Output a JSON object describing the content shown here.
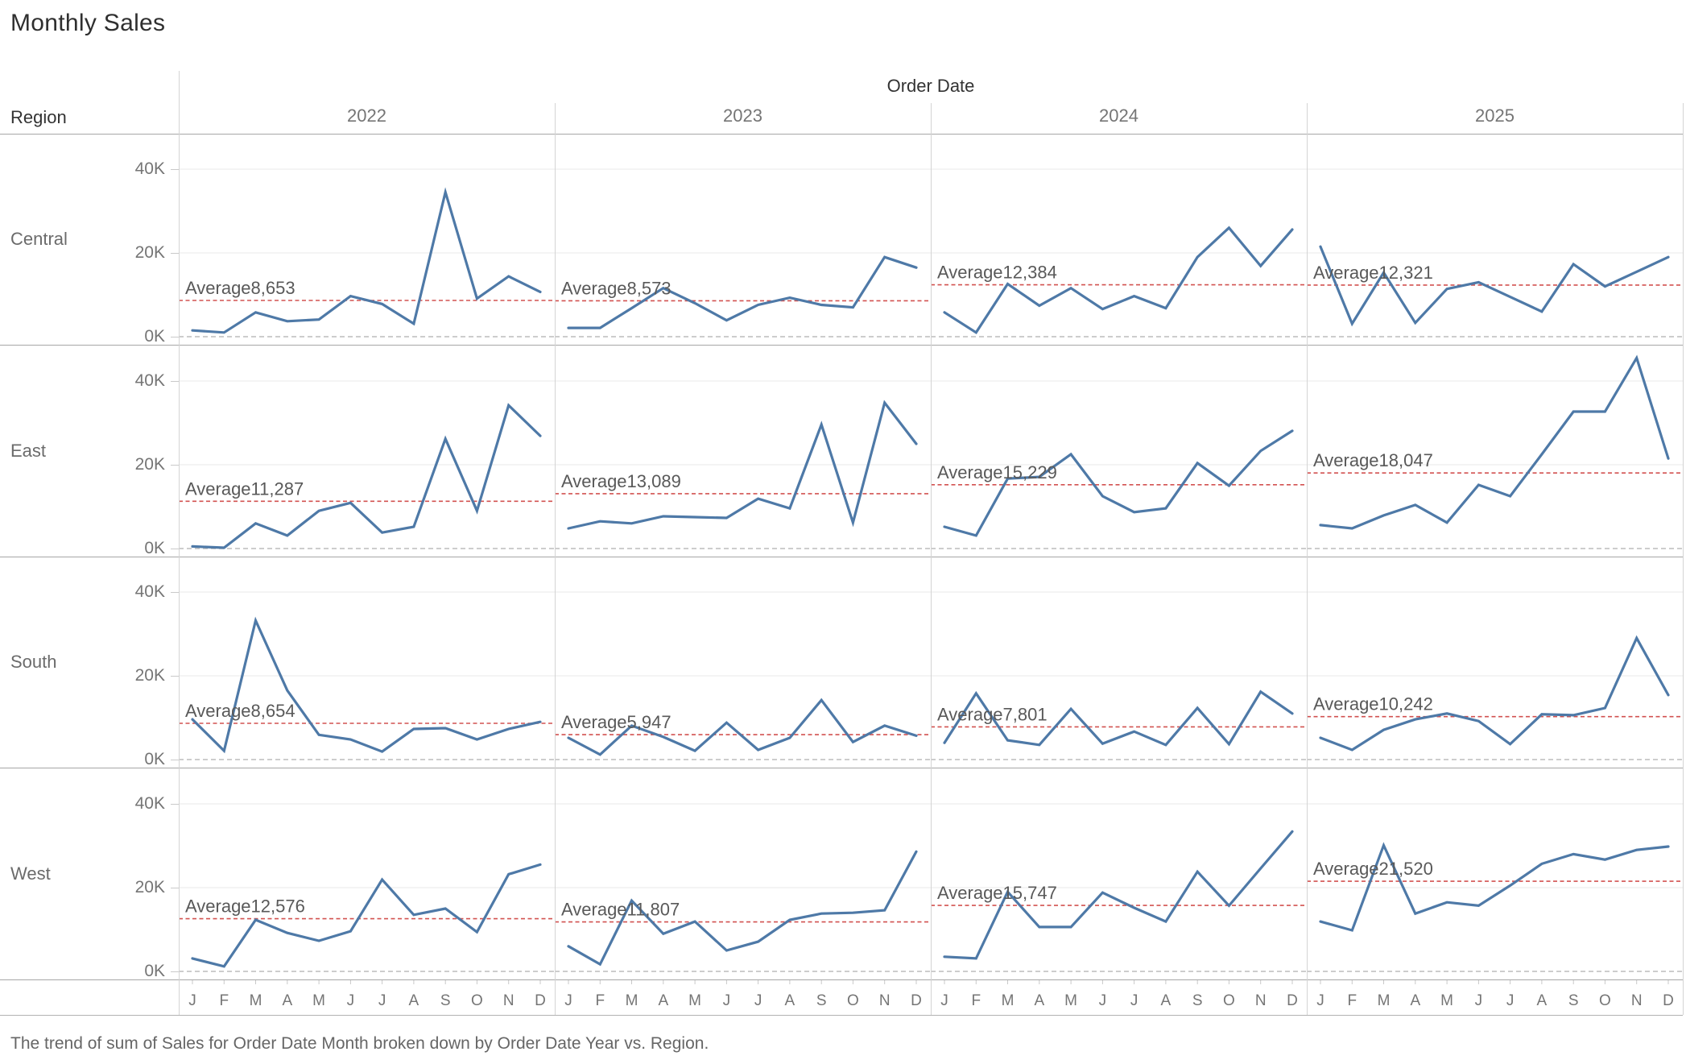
{
  "title": "Monthly Sales",
  "caption": "The trend of sum of Sales for Order Date Month broken down by Order Date Year vs. Region.",
  "header": {
    "column_field": "Order Date",
    "row_field": "Region"
  },
  "years": [
    "2022",
    "2023",
    "2024",
    "2025"
  ],
  "regions": [
    "Central",
    "East",
    "South",
    "West"
  ],
  "months": [
    "J",
    "F",
    "M",
    "A",
    "M",
    "J",
    "J",
    "A",
    "S",
    "O",
    "N",
    "D"
  ],
  "y_axis": {
    "tick_labels": [
      "40K",
      "20K",
      "0K"
    ],
    "tick_values": [
      40000,
      20000,
      0
    ],
    "max": 43000
  },
  "colors": {
    "line": "#4e79a7",
    "average_line": "#d25250",
    "gridline": "#ededed",
    "zero_line": "#c6c6c6",
    "row_border": "#a6a6a6",
    "col_border": "#d4d4d4",
    "text_gray": "#757575"
  },
  "chart_data": {
    "type": "line",
    "title": "Monthly Sales",
    "x_categories": [
      "J",
      "F",
      "M",
      "A",
      "M",
      "J",
      "J",
      "A",
      "S",
      "O",
      "N",
      "D"
    ],
    "ylim": [
      0,
      43000
    ],
    "grid": true,
    "facet_columns_field": "Order Date",
    "facet_rows_field": "Region",
    "cells": [
      {
        "region": "Central",
        "year": "2022",
        "average": 8653,
        "average_label": "Average8,653",
        "values": [
          1500,
          1000,
          5800,
          3700,
          4100,
          9700,
          7800,
          3100,
          34500,
          9100,
          14400,
          10700
        ]
      },
      {
        "region": "Central",
        "year": "2023",
        "average": 8573,
        "average_label": "Average8,573",
        "values": [
          2100,
          2100,
          6800,
          11600,
          8000,
          3900,
          7600,
          9300,
          7600,
          7000,
          19000,
          16500
        ]
      },
      {
        "region": "Central",
        "year": "2024",
        "average": 12384,
        "average_label": "Average12,384",
        "values": [
          5800,
          1000,
          12600,
          7400,
          11600,
          6600,
          9700,
          6800,
          19000,
          26000,
          16900,
          25600
        ]
      },
      {
        "region": "Central",
        "year": "2025",
        "average": 12321,
        "average_label": "Average12,321",
        "values": [
          21500,
          3100,
          15300,
          3300,
          11400,
          13000,
          9500,
          6000,
          17300,
          12000,
          15500,
          19000
        ]
      },
      {
        "region": "East",
        "year": "2022",
        "average": 11287,
        "average_label": "Average11,287",
        "values": [
          500,
          200,
          6000,
          3100,
          9000,
          10900,
          3800,
          5200,
          26200,
          9000,
          34200,
          26900
        ]
      },
      {
        "region": "East",
        "year": "2023",
        "average": 13089,
        "average_label": "Average13,089",
        "values": [
          4800,
          6500,
          6000,
          7700,
          7500,
          7300,
          11900,
          9600,
          29600,
          6200,
          34800,
          25000
        ]
      },
      {
        "region": "East",
        "year": "2024",
        "average": 15229,
        "average_label": "Average15,229",
        "values": [
          5200,
          3100,
          16700,
          17100,
          22500,
          12500,
          8700,
          9600,
          20400,
          15000,
          23300,
          28100
        ]
      },
      {
        "region": "East",
        "year": "2025",
        "average": 18047,
        "average_label": "Average18,047",
        "values": [
          5600,
          4800,
          7900,
          10400,
          6200,
          15200,
          12500,
          22500,
          32700,
          32700,
          45500,
          21500
        ]
      },
      {
        "region": "South",
        "year": "2022",
        "average": 8654,
        "average_label": "Average8,654",
        "values": [
          9600,
          2100,
          33200,
          16500,
          5900,
          4800,
          1900,
          7300,
          7500,
          4800,
          7300,
          9000
        ]
      },
      {
        "region": "South",
        "year": "2023",
        "average": 5947,
        "average_label": "Average5,947",
        "values": [
          5200,
          1200,
          8100,
          5400,
          2100,
          8800,
          2300,
          5200,
          14200,
          4200,
          8100,
          5700
        ]
      },
      {
        "region": "South",
        "year": "2024",
        "average": 7801,
        "average_label": "Average7,801",
        "values": [
          4000,
          15800,
          4600,
          3500,
          12100,
          3800,
          6700,
          3500,
          12300,
          3700,
          16200,
          11000
        ]
      },
      {
        "region": "South",
        "year": "2025",
        "average": 10242,
        "average_label": "Average10,242",
        "values": [
          5200,
          2300,
          7100,
          9600,
          11000,
          9200,
          3700,
          10800,
          10600,
          12300,
          29000,
          15400
        ]
      },
      {
        "region": "West",
        "year": "2022",
        "average": 12576,
        "average_label": "Average12,576",
        "values": [
          3100,
          1200,
          12300,
          9200,
          7300,
          9600,
          21900,
          13500,
          15000,
          9400,
          23200,
          25500
        ]
      },
      {
        "region": "West",
        "year": "2023",
        "average": 11807,
        "average_label": "Average11,807",
        "values": [
          6000,
          1700,
          16900,
          9000,
          11900,
          5000,
          7100,
          12300,
          13800,
          14000,
          14600,
          28600
        ]
      },
      {
        "region": "West",
        "year": "2024",
        "average": 15747,
        "average_label": "Average15,747",
        "values": [
          3500,
          3100,
          19000,
          10600,
          10600,
          18800,
          15200,
          11900,
          23800,
          15700,
          24600,
          33400
        ]
      },
      {
        "region": "West",
        "year": "2025",
        "average": 21520,
        "average_label": "Average21,520",
        "values": [
          11900,
          9800,
          30100,
          13800,
          16500,
          15700,
          20500,
          25700,
          28000,
          26700,
          29000,
          29800
        ]
      }
    ]
  }
}
